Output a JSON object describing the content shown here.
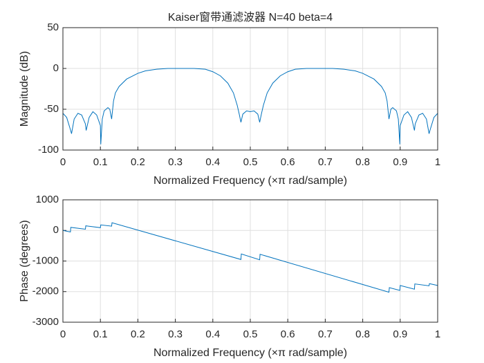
{
  "chart_data": [
    {
      "type": "line",
      "title": "Kaiser窗带通滤波器 N=40 beta=4",
      "xlabel": "Normalized Frequency  (×π rad/sample)",
      "ylabel": "Magnitude (dB)",
      "color": "#0072bd",
      "grid": true,
      "xlim": [
        0,
        1
      ],
      "xticks": [
        0,
        0.1,
        0.2,
        0.3,
        0.4,
        0.5,
        0.6,
        0.7,
        0.8,
        0.9,
        1
      ],
      "ylim": [
        -100,
        50
      ],
      "yticks": [
        -100,
        -50,
        0,
        50
      ],
      "x": [
        0,
        0.01,
        0.02,
        0.023,
        0.03,
        0.04,
        0.05,
        0.06,
        0.062,
        0.07,
        0.08,
        0.09,
        0.1,
        0.101,
        0.105,
        0.11,
        0.12,
        0.125,
        0.13,
        0.135,
        0.14,
        0.15,
        0.17,
        0.2,
        0.22,
        0.25,
        0.28,
        0.3,
        0.35,
        0.38,
        0.4,
        0.42,
        0.44,
        0.455,
        0.465,
        0.47,
        0.475,
        0.48,
        0.49,
        0.5,
        0.51,
        0.52,
        0.525,
        0.53,
        0.535,
        0.545,
        0.56,
        0.58,
        0.6,
        0.62,
        0.65,
        0.7,
        0.72,
        0.75,
        0.78,
        0.8,
        0.83,
        0.85,
        0.86,
        0.865,
        0.87,
        0.875,
        0.88,
        0.89,
        0.895,
        0.899,
        0.9,
        0.91,
        0.92,
        0.93,
        0.938,
        0.94,
        0.95,
        0.96,
        0.97,
        0.977,
        0.98,
        0.99,
        1
      ],
      "values": [
        -55,
        -60,
        -75,
        -80,
        -62,
        -55,
        -57,
        -68,
        -76,
        -60,
        -53,
        -57,
        -70,
        -93,
        -62,
        -52,
        -48,
        -50,
        -62,
        -40,
        -30,
        -22,
        -13,
        -6,
        -3,
        -1,
        0,
        0,
        0,
        -1,
        -4,
        -9,
        -18,
        -30,
        -45,
        -55,
        -66,
        -56,
        -52,
        -53,
        -52,
        -56,
        -66,
        -55,
        -45,
        -30,
        -18,
        -9,
        -4,
        -1,
        0,
        0,
        0,
        -1,
        -3,
        -6,
        -13,
        -22,
        -30,
        -40,
        -62,
        -50,
        -48,
        -52,
        -62,
        -93,
        -70,
        -57,
        -53,
        -60,
        -76,
        -68,
        -57,
        -55,
        -62,
        -80,
        -75,
        -60,
        -55
      ]
    },
    {
      "type": "line",
      "xlabel": "Normalized Frequency  (×π rad/sample)",
      "ylabel": "Phase (degrees)",
      "color": "#0072bd",
      "grid": true,
      "xlim": [
        0,
        1
      ],
      "xticks": [
        0,
        0.1,
        0.2,
        0.3,
        0.4,
        0.5,
        0.6,
        0.7,
        0.8,
        0.9,
        1
      ],
      "ylim": [
        -3000,
        1000
      ],
      "yticks": [
        -3000,
        -2000,
        -1000,
        0,
        1000
      ],
      "x": [
        0,
        0.02,
        0.021,
        0.06,
        0.061,
        0.1,
        0.101,
        0.13,
        0.131,
        0.475,
        0.476,
        0.525,
        0.526,
        0.87,
        0.871,
        0.899,
        0.9,
        0.938,
        0.939,
        0.977,
        0.978,
        1
      ],
      "values": [
        0,
        -50,
        100,
        40,
        150,
        90,
        180,
        140,
        250,
        -950,
        -770,
        -960,
        -780,
        -2020,
        -1870,
        -1960,
        -1800,
        -1920,
        -1750,
        -1810,
        -1740,
        -1800
      ]
    }
  ]
}
